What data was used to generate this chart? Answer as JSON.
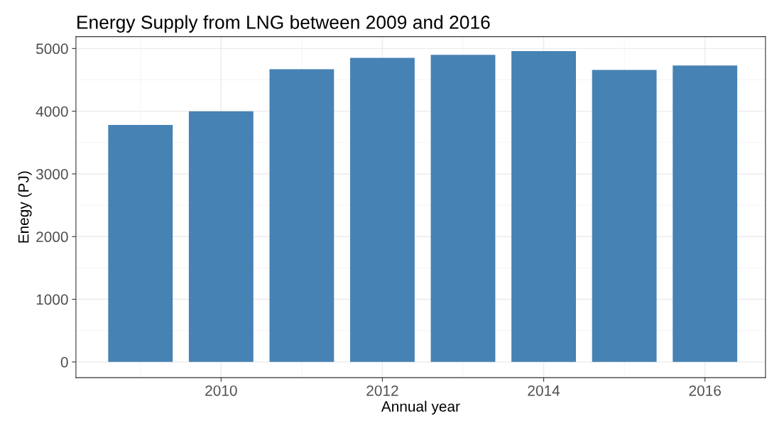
{
  "chart_data": {
    "type": "bar",
    "title": "Energy Supply from LNG between 2009 and 2016",
    "xlabel": "Annual year",
    "ylabel": "Enegy (PJ)",
    "x": [
      2009,
      2010,
      2011,
      2012,
      2013,
      2014,
      2015,
      2016
    ],
    "values": [
      3780,
      4000,
      4670,
      4850,
      4900,
      4960,
      4660,
      4730
    ],
    "color": "#4682b4",
    "xlim": [
      2008.2,
      2016.75
    ],
    "xticks": [
      2010,
      2012,
      2014,
      2016
    ],
    "ylim": [
      -250,
      5190
    ],
    "yticks": [
      0,
      1000,
      2000,
      3000,
      4000,
      5000
    ],
    "grid": true
  }
}
